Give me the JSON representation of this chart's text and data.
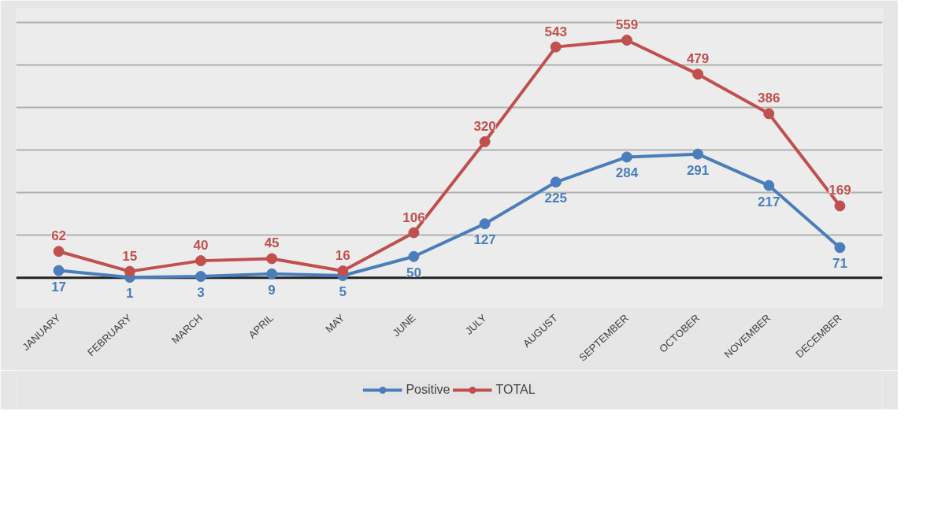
{
  "chart_data": {
    "type": "line",
    "categories": [
      "JANUARY",
      "FEBRUARY",
      "MARCH",
      "APRIL",
      "MAY",
      "JUNE",
      "JULY",
      "AUGUST",
      "SEPTEMBER",
      "OCTOBER",
      "NOVEMBER",
      "DECEMBER"
    ],
    "series": [
      {
        "name": "Positive",
        "color": "#4a7ebb",
        "values": [
          17,
          1,
          3,
          9,
          5,
          50,
          127,
          225,
          284,
          291,
          217,
          71
        ]
      },
      {
        "name": "TOTAL",
        "color": "#c0504d",
        "values": [
          62,
          15,
          40,
          45,
          16,
          106,
          320,
          543,
          559,
          479,
          386,
          169
        ]
      }
    ],
    "ylim": [
      -70,
      634
    ],
    "yticks": [
      {
        "value": 100,
        "label": null
      },
      {
        "value": 200,
        "label": null
      },
      {
        "value": 300,
        "label": null
      },
      {
        "value": 400,
        "label": null
      },
      {
        "value": 500,
        "label": null
      },
      {
        "value": 600,
        "label": null
      }
    ],
    "ref_lines": [
      {
        "axis": "y",
        "value": 0,
        "color": "#222222"
      }
    ],
    "grid": "y",
    "legend": "bottom",
    "marker": "circle",
    "line_style": "solid",
    "data_labels": true,
    "tick_labels": "x"
  }
}
